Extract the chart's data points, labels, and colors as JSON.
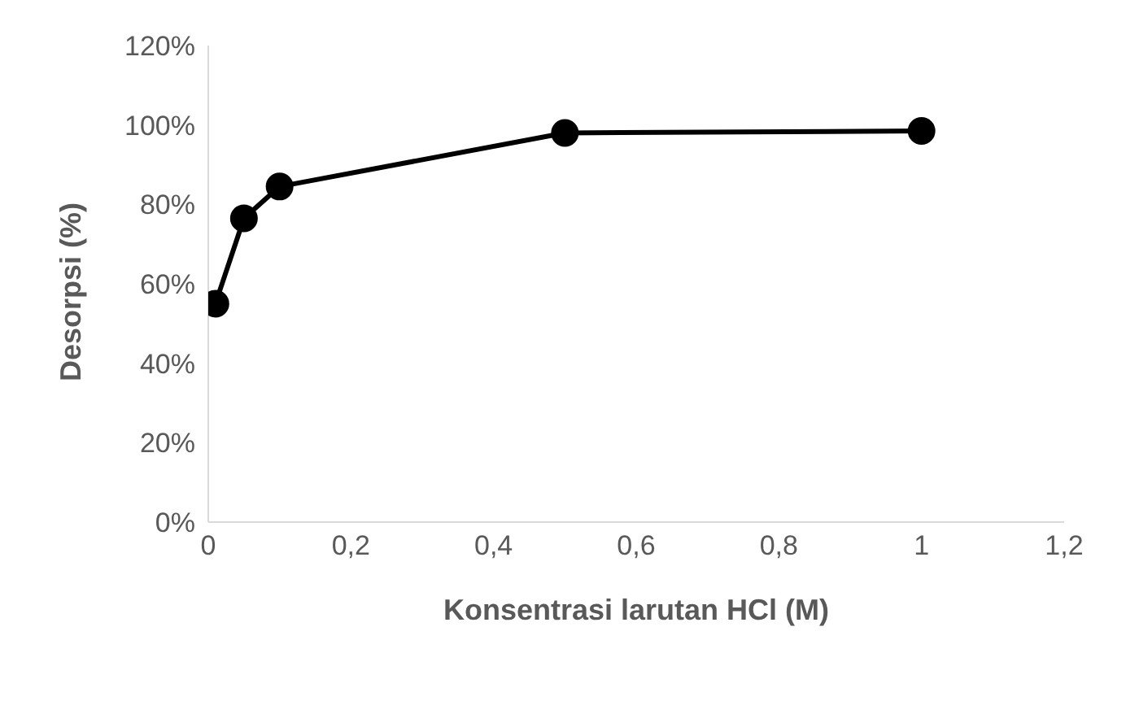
{
  "chart_data": {
    "type": "line",
    "xlabel": "Konsentrasi larutan HCl (M)",
    "ylabel": "Desorpsi (%)",
    "x": [
      0.01,
      0.05,
      0.1,
      0.5,
      1
    ],
    "series": [
      {
        "color": "#000000",
        "values": [
          55,
          76.5,
          84.5,
          98,
          98.5
        ]
      }
    ],
    "xlim": [
      0,
      1.2
    ],
    "xticks": [
      0,
      {
        "value": 0.2,
        "label": "0,2"
      },
      {
        "value": 0.4,
        "label": "0,4"
      },
      {
        "value": 0.6,
        "label": "0,6"
      },
      {
        "value": 0.8,
        "label": "0,8"
      },
      1,
      {
        "value": 1.2,
        "label": "1,2"
      }
    ],
    "ylim": [
      0,
      120
    ],
    "yticks": [
      {
        "value": 0,
        "label": "0%"
      },
      {
        "value": 20,
        "label": "20%"
      },
      {
        "value": 40,
        "label": "40%"
      },
      {
        "value": 60,
        "label": "60%"
      },
      {
        "value": 80,
        "label": "80%"
      },
      {
        "value": 100,
        "label": "100%"
      },
      {
        "value": 120,
        "label": "120%"
      }
    ],
    "grid": false,
    "legend": false,
    "marker": "circle",
    "line_style": "solid"
  }
}
